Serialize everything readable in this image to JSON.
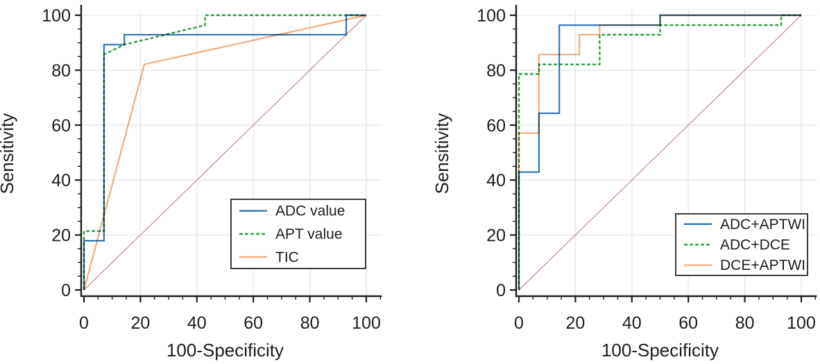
{
  "figure": {
    "background": "#ffffff",
    "axis_color": "#1d1d1d",
    "grid_color": "#e5e6e8",
    "text_color": "#1c1c1c",
    "reference_color": "#c9989e",
    "legend_border_color": "#3b3b3b",
    "legend_fill": "#ffffff"
  },
  "chart_data": [
    {
      "type": "line",
      "subtype": "roc-curve",
      "title": "",
      "xlabel": "100-Specificity",
      "ylabel": "Sensitivity",
      "xlim": [
        0,
        100
      ],
      "ylim": [
        0,
        100
      ],
      "x_ticks": [
        0,
        20,
        40,
        60,
        80,
        100
      ],
      "y_ticks": [
        0,
        20,
        40,
        60,
        80,
        100
      ],
      "minor_tick_step": 5,
      "grid": true,
      "legend_position": "lower-right",
      "reference_line": {
        "from": [
          0,
          0
        ],
        "to": [
          100,
          100
        ]
      },
      "series": [
        {
          "name": "ADC value",
          "color": "#2e73b3",
          "dash": "solid",
          "points": [
            [
              0,
              0
            ],
            [
              0,
              17.9
            ],
            [
              7.1,
              17.9
            ],
            [
              7.1,
              89.3
            ],
            [
              14.3,
              89.3
            ],
            [
              14.3,
              92.9
            ],
            [
              92.9,
              92.9
            ],
            [
              92.9,
              100
            ],
            [
              100,
              100
            ]
          ]
        },
        {
          "name": "APT value",
          "color": "#2f9e41",
          "dash": "dashed",
          "points": [
            [
              0,
              0
            ],
            [
              0,
              21.4
            ],
            [
              7.1,
              21.4
            ],
            [
              7.1,
              85.7
            ],
            [
              14.3,
              89.3
            ],
            [
              42.9,
              96.4
            ],
            [
              42.9,
              100
            ],
            [
              100,
              100
            ]
          ]
        },
        {
          "name": "TIC",
          "color": "#f0ab7c",
          "dash": "solid",
          "points": [
            [
              0,
              0
            ],
            [
              21.4,
              82.1
            ],
            [
              100,
              100
            ]
          ]
        }
      ]
    },
    {
      "type": "line",
      "subtype": "roc-curve",
      "title": "",
      "xlabel": "100-Specificity",
      "ylabel": "Sensitivity",
      "xlim": [
        0,
        100
      ],
      "ylim": [
        0,
        100
      ],
      "x_ticks": [
        0,
        20,
        40,
        60,
        80,
        100
      ],
      "y_ticks": [
        0,
        20,
        40,
        60,
        80,
        100
      ],
      "minor_tick_step": 5,
      "grid": true,
      "legend_position": "lower-right",
      "reference_line": {
        "from": [
          0,
          0
        ],
        "to": [
          100,
          100
        ]
      },
      "series": [
        {
          "name": "ADC+APTWI",
          "color": "#2e73b3",
          "dash": "solid",
          "points": [
            [
              0,
              0
            ],
            [
              0,
              42.9
            ],
            [
              7.1,
              42.9
            ],
            [
              7.1,
              64.3
            ],
            [
              14.3,
              64.3
            ],
            [
              14.3,
              96.4
            ],
            [
              50,
              96.4
            ],
            [
              50,
              100
            ],
            [
              100,
              100
            ]
          ]
        },
        {
          "name": "ADC+DCE",
          "color": "#2f9e41",
          "dash": "dashed",
          "points": [
            [
              0,
              0
            ],
            [
              0,
              78.6
            ],
            [
              7.1,
              78.6
            ],
            [
              7.1,
              82.1
            ],
            [
              28.6,
              82.1
            ],
            [
              28.6,
              92.9
            ],
            [
              50,
              92.9
            ],
            [
              50,
              96.4
            ],
            [
              92.9,
              96.4
            ],
            [
              92.9,
              100
            ],
            [
              100,
              100
            ]
          ]
        },
        {
          "name": "DCE+APTWI",
          "color": "#f0ab7c",
          "dash": "solid",
          "points": [
            [
              0,
              0
            ],
            [
              0,
              57.1
            ],
            [
              7.1,
              57.1
            ],
            [
              7.1,
              85.7
            ],
            [
              21.4,
              85.7
            ],
            [
              21.4,
              92.9
            ],
            [
              28.6,
              92.9
            ],
            [
              28.6,
              96.4
            ],
            [
              50,
              96.4
            ],
            [
              50,
              100
            ],
            [
              100,
              100
            ]
          ]
        }
      ]
    }
  ]
}
